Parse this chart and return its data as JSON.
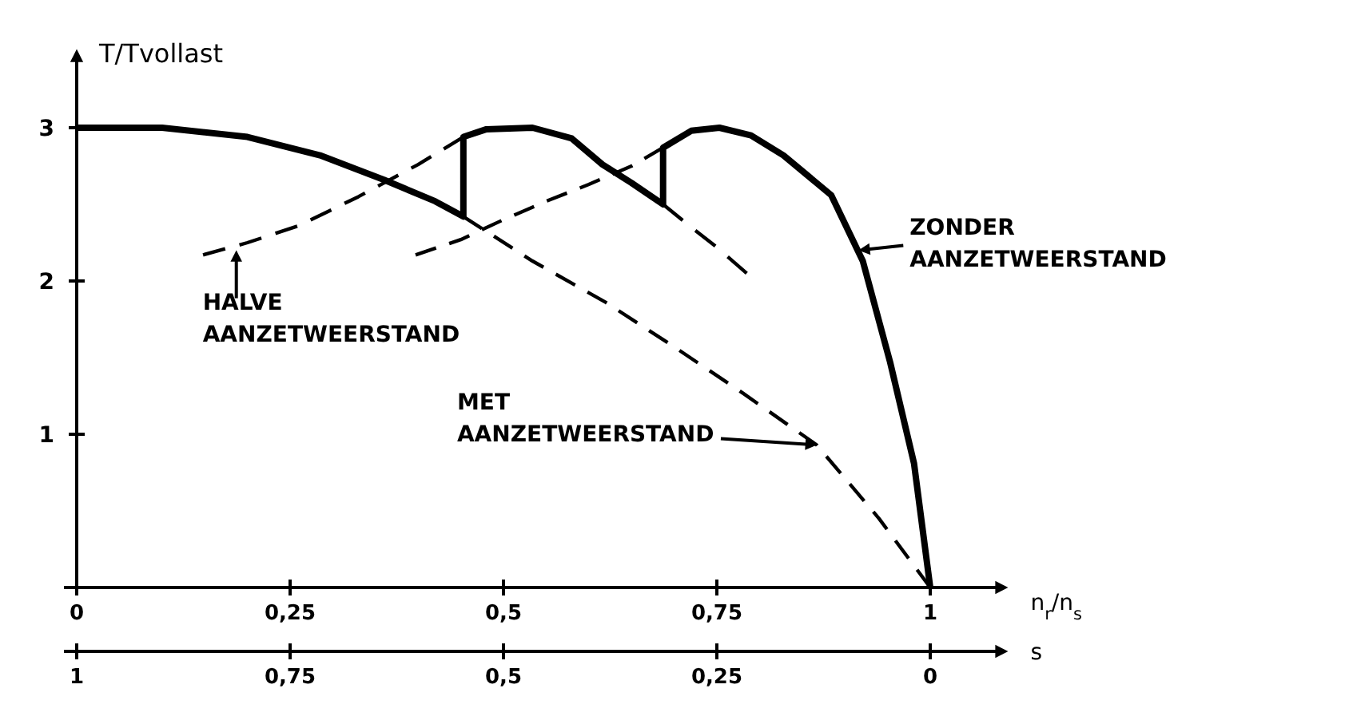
{
  "chart_data": {
    "type": "line",
    "xlabel": "n$_{r}$/n$_{s}$",
    "ylabel": "T/Tvollast",
    "x2label": "s",
    "xlim": [
      0,
      1.08
    ],
    "xticks": [
      0,
      {
        "value": 0.25,
        "label": "0,25"
      },
      {
        "value": 0.5,
        "label": "0,5"
      },
      {
        "value": 0.75,
        "label": "0,75"
      },
      1
    ],
    "x2lim": [
      1,
      -0.08
    ],
    "x2ticks": [
      1,
      {
        "value": 0.75,
        "label": "0,75"
      },
      {
        "value": 0.5,
        "label": "0,5"
      },
      {
        "value": 0.25,
        "label": "0,25"
      },
      0
    ],
    "ylim": [
      0,
      3.45
    ],
    "yticks": [
      1,
      2,
      3
    ],
    "series": [
      {
        "color": "#000000",
        "line_style": "solid",
        "x": [
          0,
          0.1,
          0.2,
          0.285,
          0.36,
          0.42,
          0.453,
          0.453,
          0.48,
          0.534,
          0.58,
          0.616,
          0.65,
          0.687,
          0.687,
          0.72,
          0.753,
          0.79,
          0.828,
          0.884,
          0.921,
          0.953,
          0.981,
          1
        ],
        "values": [
          3,
          3,
          2.94,
          2.82,
          2.66,
          2.52,
          2.42,
          2.94,
          2.99,
          3,
          2.93,
          2.76,
          2.64,
          2.5,
          2.87,
          2.98,
          3,
          2.95,
          2.82,
          2.56,
          2.13,
          1.47,
          0.81,
          0
        ]
      },
      {
        "color": "#000000",
        "line_style": "dashed",
        "x": [
          0.453,
          0.534,
          0.62,
          0.7,
          0.78,
          0.867,
          0.94,
          1
        ],
        "values": [
          2.42,
          2.13,
          1.86,
          1.57,
          1.27,
          0.93,
          0.45,
          0
        ]
      },
      {
        "color": "#000000",
        "line_style": "dashed",
        "x": [
          0.148,
          0.2,
          0.26,
          0.33,
          0.4,
          0.453
        ],
        "values": [
          2.17,
          2.25,
          2.36,
          2.55,
          2.76,
          2.94
        ]
      },
      {
        "color": "#000000",
        "line_style": "dashed",
        "x": [
          0.397,
          0.45,
          0.5,
          0.55,
          0.6,
          0.65,
          0.687
        ],
        "values": [
          2.17,
          2.27,
          2.4,
          2.52,
          2.63,
          2.75,
          2.87
        ]
      },
      {
        "color": "#000000",
        "line_style": "dashed",
        "x": [
          0.687,
          0.72,
          0.75,
          0.785
        ],
        "values": [
          2.5,
          2.35,
          2.22,
          2.05
        ]
      }
    ],
    "annotations": [
      {
        "text": "ZONDER\nAANZETWEERSTAND",
        "x": 0.916,
        "y": 2.2
      },
      {
        "text": "HALVE\nAANZETWEERSTAND",
        "x": 0.187,
        "y": 2.2
      },
      {
        "text": "MET\nAANZETWEERSTAND",
        "x": 0.867,
        "y": 0.93
      }
    ]
  }
}
